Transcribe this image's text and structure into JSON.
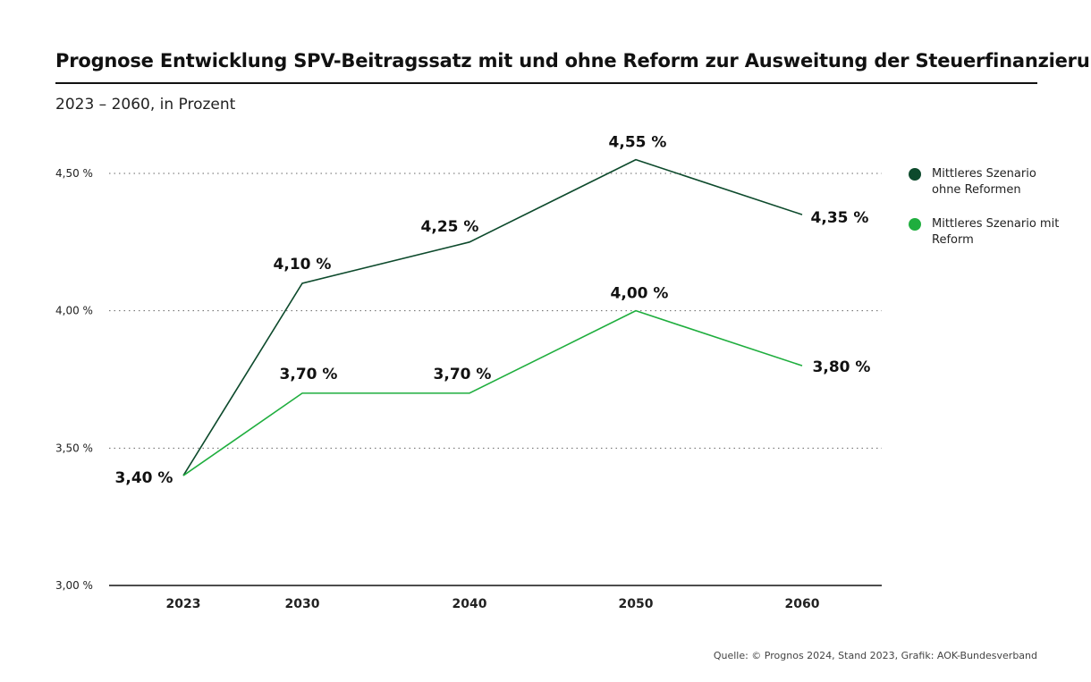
{
  "title": "Prognose Entwicklung SPV-Beitragssatz mit und ohne Reform zur Ausweitung der Steuerfinanzierung",
  "subtitle": "2023 – 2060, in Prozent",
  "source": "Quelle: © Prognos 2024, Stand 2023, Grafik: AOK-Bundesverband",
  "legend": {
    "items": [
      {
        "label": "Mittleres Szenario ohne Reformen",
        "color": "#0d4a2c"
      },
      {
        "label": "Mittleres Szenario mit Reform",
        "color": "#1fae3e"
      }
    ]
  },
  "chart_data": {
    "type": "line",
    "title": "Prognose Entwicklung SPV-Beitragssatz mit und ohne Reform zur Ausweitung der Steuerfinanzierung",
    "subtitle": "2023 – 2060, in Prozent",
    "xlabel": "",
    "ylabel": "",
    "x": [
      2023,
      2030,
      2040,
      2050,
      2060
    ],
    "x_tick_labels": [
      "2023",
      "2030",
      "2040",
      "2050",
      "2060"
    ],
    "ylim": [
      3.0,
      4.6
    ],
    "y_ticks": [
      3.0,
      3.5,
      4.0,
      4.5
    ],
    "y_tick_labels": [
      "3,00 %",
      "3,50 %",
      "4,00 %",
      "4,50 %"
    ],
    "grid": "horizontal dotted",
    "legend_position": "right",
    "series": [
      {
        "name": "Mittleres Szenario ohne Reformen",
        "color": "#0d4a2c",
        "values": [
          3.4,
          4.1,
          4.25,
          4.55,
          4.35
        ],
        "labels": [
          "3,40 %",
          "4,10 %",
          "4,25 %",
          "4,55 %",
          "4,35 %"
        ]
      },
      {
        "name": "Mittleres Szenario mit Reform",
        "color": "#1fae3e",
        "values": [
          3.4,
          3.7,
          3.7,
          4.0,
          3.8
        ],
        "labels": [
          "",
          "3,70 %",
          "3,70 %",
          "4,00 %",
          "3,80 %"
        ]
      }
    ]
  }
}
